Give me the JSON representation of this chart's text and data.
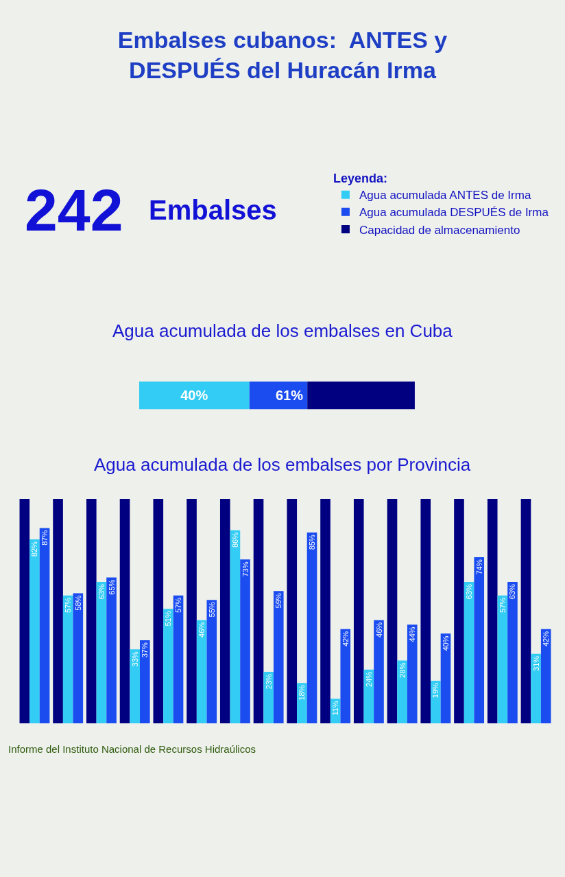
{
  "chart_data": [
    {
      "type": "other",
      "title": "Embalses cubanos:  ANTES y DESPUÉS del Huracán Irma",
      "annotations": [
        "242",
        "Embalses"
      ]
    },
    {
      "type": "bar",
      "title": "Agua acumulada de los embalses en Cuba",
      "orientation": "horizontal",
      "stacked": true,
      "categories": [
        null
      ],
      "xlim": [
        0,
        100
      ],
      "legend": "top right",
      "legend_title": "Leyenda:",
      "annotations": [
        {
          "text": "61%",
          "x": 61
        }
      ],
      "series": [
        {
          "name": "Agua acumulada ANTES de Irma",
          "color": "#33ccf5",
          "values": [
            40
          ],
          "value_labels": [
            "40%"
          ]
        },
        {
          "name": "Agua acumulada DESPUÉS de Irma",
          "color": "#1a4cf0",
          "values": [
            21
          ]
        },
        {
          "name": "Capacidad de almacenamiento",
          "color": "#000080",
          "values": [
            39
          ]
        }
      ]
    },
    {
      "type": "bar",
      "title": "Agua acumulada de los embalses por Provincia",
      "categories": [
        null,
        null,
        null,
        null,
        null,
        null,
        null,
        null,
        null,
        null,
        null,
        null,
        null,
        null,
        null,
        null
      ],
      "ylim": [
        0,
        100
      ],
      "annotations": [
        "Informe del Instituto Nacional de Recursos Hidraúlicos"
      ],
      "series": [
        {
          "color": "#000080",
          "values": [
            100,
            100,
            100,
            100,
            100,
            100,
            100,
            100,
            100,
            100,
            100,
            100,
            100,
            100,
            100,
            100
          ]
        },
        {
          "color": "#33ccf5",
          "values": [
            82,
            57,
            63,
            33,
            51,
            46,
            86,
            23,
            18,
            11,
            24,
            28,
            19,
            63,
            57,
            31
          ],
          "value_labels": [
            "82%",
            "57%",
            "63%",
            "33%",
            "51%",
            "46%",
            "86%",
            "23%",
            "18%",
            "11%",
            "24%",
            "28%",
            "19%",
            "63%",
            "57%",
            "31%"
          ]
        },
        {
          "color": "#1a4cf0",
          "values": [
            87,
            58,
            65,
            37,
            57,
            55,
            73,
            59,
            85,
            42,
            46,
            44,
            40,
            74,
            63,
            42
          ],
          "value_labels": [
            "87%",
            "58%",
            "65%",
            "37%",
            "57%",
            "55%",
            "73%",
            "59%",
            "85%",
            "42%",
            "46%",
            "44%",
            "40%",
            "74%",
            "63%",
            "42%"
          ]
        }
      ]
    }
  ]
}
